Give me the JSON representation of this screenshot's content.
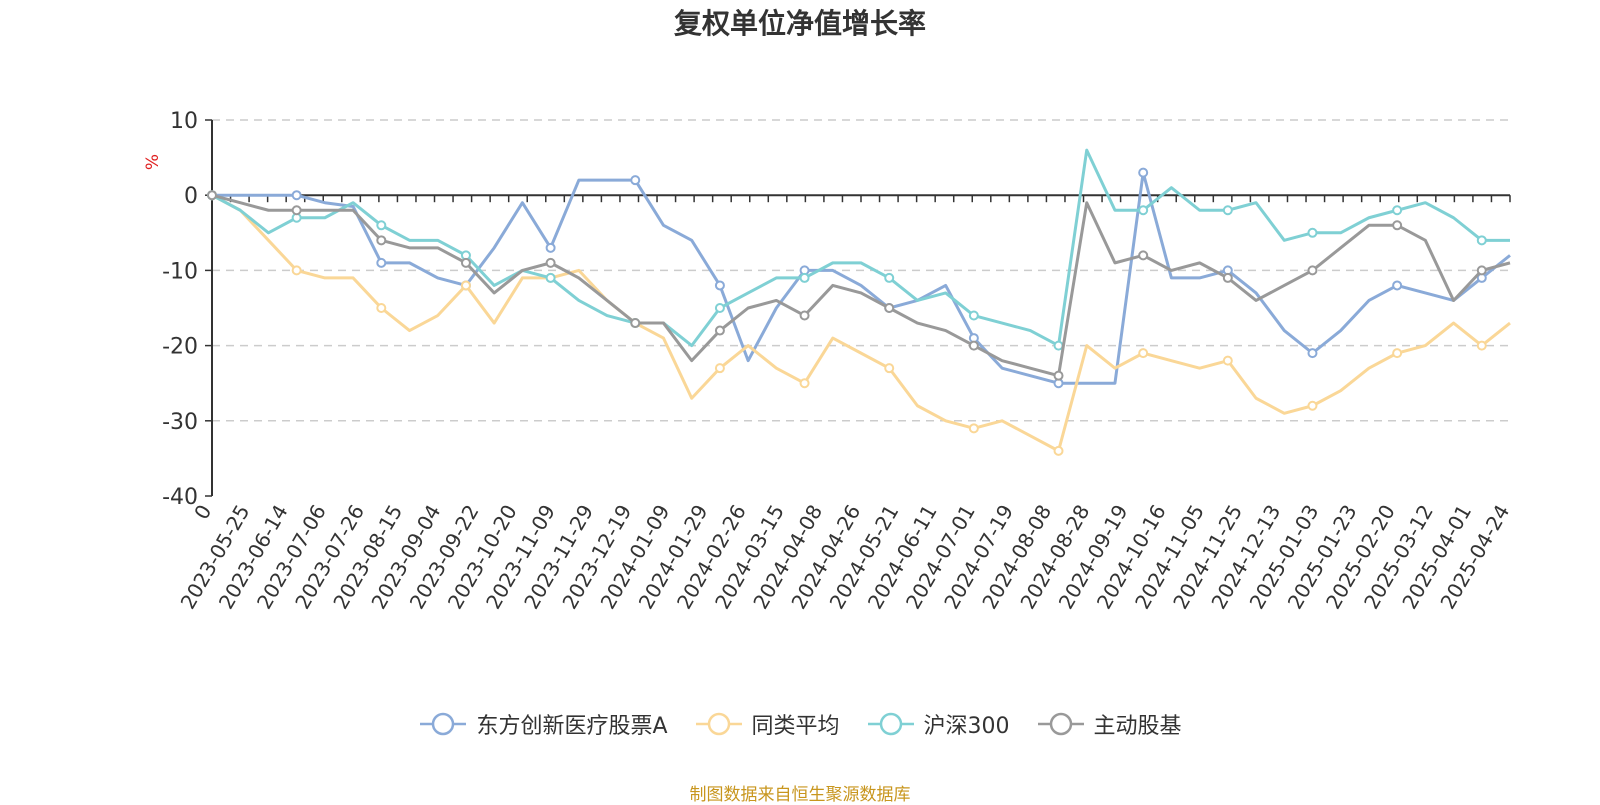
{
  "chart_data": {
    "type": "line",
    "title": "复权单位净值增长率",
    "ylabel": "%",
    "xlabel": "",
    "ylim": [
      -40,
      10
    ],
    "yticks": [
      10,
      0,
      -10,
      -20,
      -30,
      -40
    ],
    "grid": true,
    "legend_position": "bottom",
    "x_tick_labels": [
      "0",
      "2023-05-25",
      "2023-06-14",
      "2023-07-06",
      "2023-07-26",
      "2023-08-15",
      "2023-09-04",
      "2023-09-22",
      "2023-10-20",
      "2023-11-09",
      "2023-11-29",
      "2023-12-19",
      "2024-01-09",
      "2024-01-29",
      "2024-02-26",
      "2024-03-15",
      "2024-04-08",
      "2024-04-26",
      "2024-05-21",
      "2024-06-11",
      "2024-07-01",
      "2024-07-19",
      "2024-08-08",
      "2024-08-28",
      "2024-09-19",
      "2024-10-16",
      "2024-11-05",
      "2024-11-25",
      "2024-12-13",
      "2025-01-03",
      "2025-01-23",
      "2025-02-20",
      "2025-03-12",
      "2025-04-01",
      "2025-04-24"
    ],
    "series": [
      {
        "name": "东方创新医疗股票A",
        "color": "#8aaad8",
        "values": [
          0,
          0,
          0,
          0,
          -1,
          -1.5,
          -9,
          -9,
          -11,
          -12,
          -7,
          -1,
          -7,
          2,
          2,
          2,
          -4,
          -6,
          -12,
          -22,
          -15,
          -10,
          -10,
          -12,
          -15,
          -14,
          -12,
          -19,
          -23,
          -24,
          -25,
          -25,
          -25,
          3,
          -11,
          -11,
          -10,
          -13,
          -18,
          -21,
          -18,
          -14,
          -12,
          -13,
          -14,
          -11,
          -8
        ]
      },
      {
        "name": "同类平均",
        "color": "#fad797",
        "values": [
          0,
          -2,
          -6,
          -10,
          -11,
          -11,
          -15,
          -18,
          -16,
          -12,
          -17,
          -11,
          -11,
          -10,
          -14,
          -17,
          -19,
          -27,
          -23,
          -20,
          -23,
          -25,
          -19,
          -21,
          -23,
          -28,
          -30,
          -31,
          -30,
          -32,
          -34,
          -20,
          -23,
          -21,
          -22,
          -23,
          -22,
          -27,
          -29,
          -28,
          -26,
          -23,
          -21,
          -20,
          -17,
          -20,
          -17
        ]
      },
      {
        "name": "沪深300",
        "color": "#7fd0d4",
        "values": [
          0,
          -2,
          -5,
          -3,
          -3,
          -1,
          -4,
          -6,
          -6,
          -8,
          -12,
          -10,
          -11,
          -14,
          -16,
          -17,
          -17,
          -20,
          -15,
          -13,
          -11,
          -11,
          -9,
          -9,
          -11,
          -14,
          -13,
          -16,
          -17,
          -18,
          -20,
          6,
          -2,
          -2,
          1,
          -2,
          -2,
          -1,
          -6,
          -5,
          -5,
          -3,
          -2,
          -1,
          -3,
          -6,
          -6
        ]
      },
      {
        "name": "主动股基",
        "color": "#999999",
        "values": [
          0,
          -1,
          -2,
          -2,
          -2,
          -2,
          -6,
          -7,
          -7,
          -9,
          -13,
          -10,
          -9,
          -11,
          -14,
          -17,
          -17,
          -22,
          -18,
          -15,
          -14,
          -16,
          -12,
          -13,
          -15,
          -17,
          -18,
          -20,
          -22,
          -23,
          -24,
          -1,
          -9,
          -8,
          -10,
          -9,
          -11,
          -14,
          -12,
          -10,
          -7,
          -4,
          -4,
          -6,
          -14,
          -10,
          -9
        ]
      }
    ]
  },
  "source_note": "制图数据来自恒生聚源数据库"
}
